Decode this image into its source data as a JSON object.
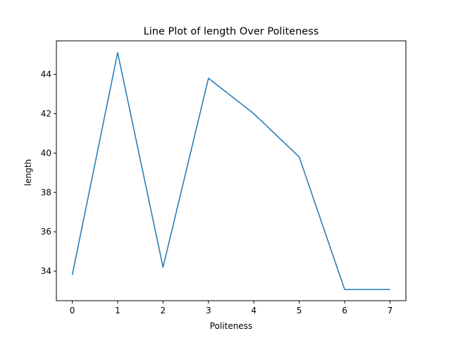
{
  "chart_data": {
    "type": "line",
    "title": "Line Plot of length Over Politeness",
    "xlabel": "Politeness",
    "ylabel": "length",
    "x": [
      0,
      1,
      2,
      3,
      4,
      5,
      6,
      7
    ],
    "series": [
      {
        "values": [
          33.8,
          45.1,
          34.2,
          43.8,
          42.0,
          39.8,
          33.07,
          33.07
        ]
      }
    ],
    "xlim": [
      -0.35,
      7.35
    ],
    "ylim": [
      32.5,
      45.7
    ],
    "xticks": [
      "0",
      "1",
      "2",
      "3",
      "4",
      "5",
      "6",
      "7"
    ],
    "yticks": [
      "34",
      "36",
      "38",
      "40",
      "42",
      "44"
    ],
    "grid": false,
    "line_color": "#1f77b4"
  }
}
